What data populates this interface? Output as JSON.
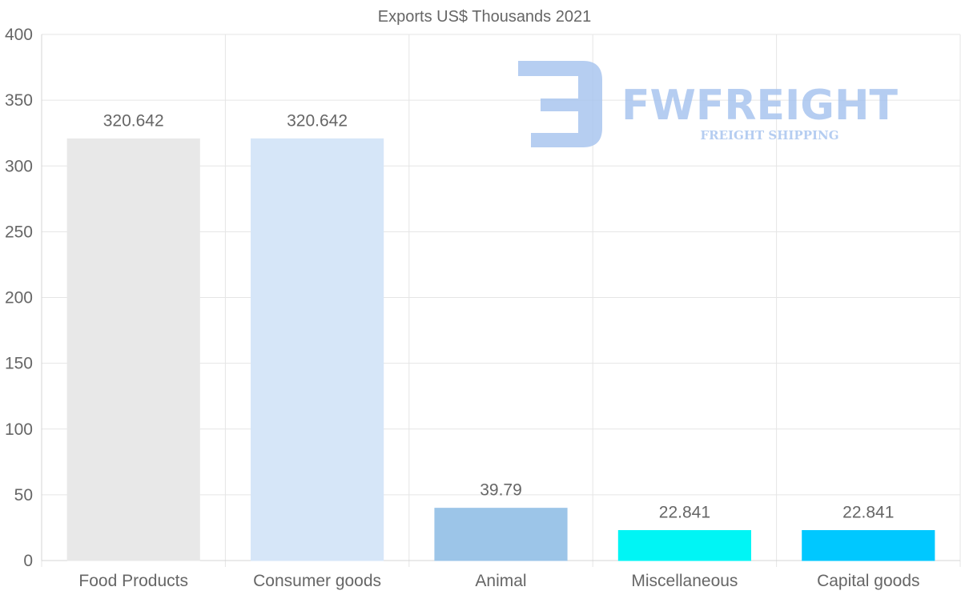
{
  "chart_data": {
    "type": "bar",
    "title": "Exports US$ Thousands 2021",
    "categories": [
      "Food Products",
      "Consumer goods",
      "Animal",
      "Miscellaneous",
      "Capital goods"
    ],
    "values": [
      320.642,
      320.642,
      39.79,
      22.841,
      22.841
    ],
    "value_labels": [
      "320.642",
      "320.642",
      "39.79",
      "22.841",
      "22.841"
    ],
    "colors": [
      "#e8e8e8",
      "#d6e6f8",
      "#9cc5e8",
      "#00f5f5",
      "#00c8ff"
    ],
    "ylim": [
      0,
      400
    ],
    "yticks": [
      0,
      50,
      100,
      150,
      200,
      250,
      300,
      350,
      400
    ],
    "xlabel": "",
    "ylabel": "",
    "grid": true,
    "legend": "none"
  },
  "watermark": {
    "brand": "FWFREIGHT",
    "tagline": "FREIGHT SHIPPING",
    "color": "#a9c5ef"
  }
}
